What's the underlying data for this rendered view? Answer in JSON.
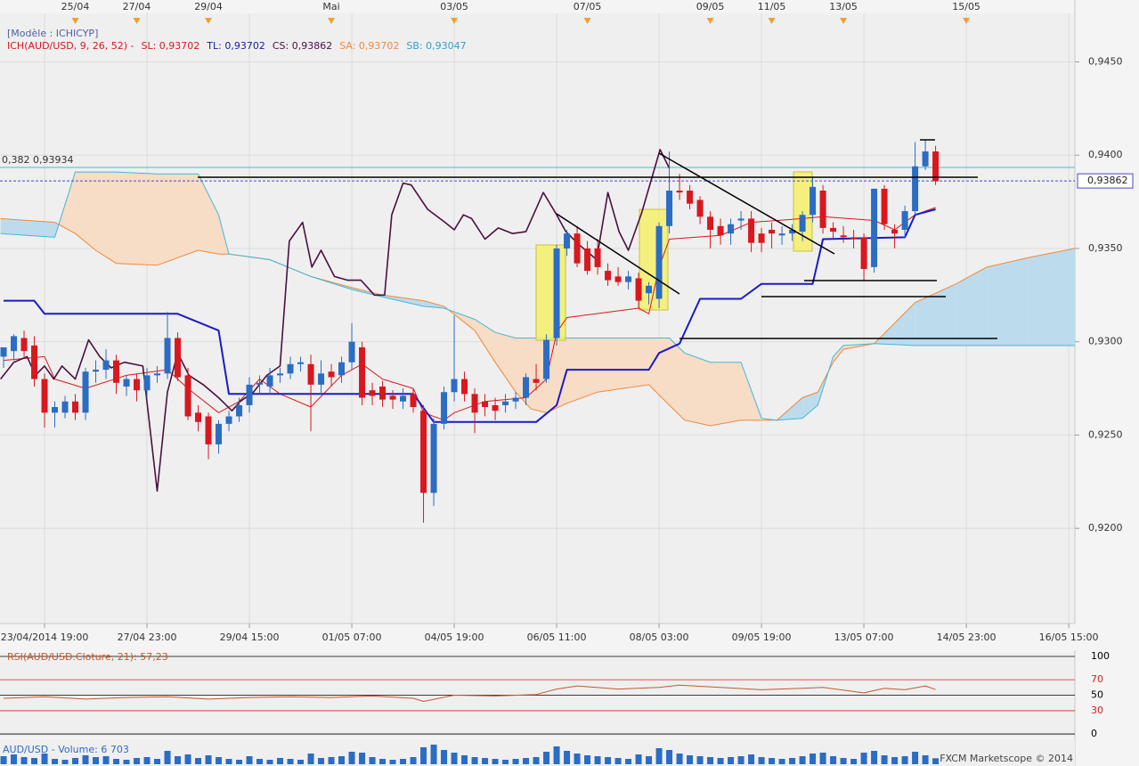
{
  "chart_data": [
    {
      "type": "candlestick",
      "model_label": "[Modèle : ICHICYP]",
      "indicator_labels": [
        {
          "text": "ICH(AUD/USD, 9, 26, 52) -",
          "color": "#d8181e"
        },
        {
          "text": "SL: 0,93702",
          "color": "#d8181e"
        },
        {
          "text": "TL: 0,93702",
          "color": "#1a1ab0"
        },
        {
          "text": "CS: 0,93862",
          "color": "#4a1040"
        },
        {
          "text": "SA: 0,93702",
          "color": "#f0883a"
        },
        {
          "text": "SB: 0,93047",
          "color": "#30a0d0"
        }
      ],
      "top_ticks": [
        {
          "value": 7,
          "label": "25/04"
        },
        {
          "value": 13,
          "label": "27/04"
        },
        {
          "value": 20,
          "label": "29/04"
        },
        {
          "value": 32,
          "label": "Mai"
        },
        {
          "value": 44,
          "label": "03/05"
        },
        {
          "value": 57,
          "label": "07/05"
        },
        {
          "value": 69,
          "label": "09/05"
        },
        {
          "value": 75,
          "label": "11/05"
        },
        {
          "value": 82,
          "label": "13/05"
        },
        {
          "value": 94,
          "label": "15/05"
        }
      ],
      "xticks": [
        {
          "value": 4,
          "label": "23/04/2014 19:00"
        },
        {
          "value": 14,
          "label": "27/04 23:00"
        },
        {
          "value": 24,
          "label": "29/04 15:00"
        },
        {
          "value": 34,
          "label": "01/05 07:00"
        },
        {
          "value": 44,
          "label": "04/05 19:00"
        },
        {
          "value": 54,
          "label": "06/05 11:00"
        },
        {
          "value": 64,
          "label": "08/05 03:00"
        },
        {
          "value": 74,
          "label": "09/05 19:00"
        },
        {
          "value": 84,
          "label": "13/05 07:00"
        },
        {
          "value": 94,
          "label": "14/05 23:00"
        },
        {
          "value": 104,
          "label": "16/05 15:00"
        }
      ],
      "xlim": [
        -0.35,
        104.6
      ],
      "ylim": [
        0.9149,
        0.9476
      ],
      "yticks": [
        {
          "value": 0.92,
          "label": "0,9200"
        },
        {
          "value": 0.925,
          "label": "0,9250"
        },
        {
          "value": 0.93,
          "label": "0,9300"
        },
        {
          "value": 0.935,
          "label": "0,9350"
        },
        {
          "value": 0.94,
          "label": "0,9400"
        },
        {
          "value": 0.945,
          "label": "0,9450"
        }
      ],
      "grid": true,
      "up_color": "#2b6cc4",
      "down_color": "#d8181e",
      "open": [
        0.9292,
        0.9295,
        0.9302,
        0.9298,
        0.928,
        0.9262,
        0.9262,
        0.9268,
        0.9262,
        0.9284,
        0.9285,
        0.929,
        0.9276,
        0.928,
        0.9274,
        0.9282,
        0.9283,
        0.9302,
        0.9282,
        0.9262,
        0.926,
        0.9245,
        0.9256,
        0.926,
        0.9266,
        0.9277,
        0.9276,
        0.9282,
        0.9283,
        0.9288,
        0.9288,
        0.9277,
        0.9284,
        0.9282,
        0.9289,
        0.9297,
        0.9274,
        0.9276,
        0.9271,
        0.9268,
        0.9272,
        0.9263,
        0.9219,
        0.9256,
        0.9273,
        0.928,
        0.9272,
        0.9268,
        0.9266,
        0.9266,
        0.9268,
        0.927,
        0.928,
        0.928,
        0.9302,
        0.935,
        0.9358,
        0.935,
        0.935,
        0.9338,
        0.9335,
        0.9332,
        0.9334,
        0.9326,
        0.9323,
        0.9362,
        0.9381,
        0.9381,
        0.9376,
        0.9367,
        0.9362,
        0.9358,
        0.9365,
        0.9366,
        0.9358,
        0.936,
        0.9357,
        0.9358,
        0.9359,
        0.9368,
        0.9381,
        0.9361,
        0.9357,
        0.9356,
        0.9356,
        0.934,
        0.9382,
        0.936,
        0.936,
        0.937,
        0.9394,
        0.9402
      ],
      "high": [
        0.9297,
        0.9304,
        0.9306,
        0.9303,
        0.9283,
        0.9268,
        0.9271,
        0.9272,
        0.9286,
        0.929,
        0.9296,
        0.9293,
        0.9282,
        0.9283,
        0.9286,
        0.9287,
        0.9316,
        0.9305,
        0.9286,
        0.9266,
        0.9262,
        0.9258,
        0.9263,
        0.927,
        0.9281,
        0.9282,
        0.9286,
        0.9286,
        0.9292,
        0.9292,
        0.9293,
        0.929,
        0.9288,
        0.9292,
        0.931,
        0.93,
        0.9278,
        0.9279,
        0.9274,
        0.9275,
        0.9275,
        0.9266,
        0.9259,
        0.9276,
        0.9314,
        0.9284,
        0.9275,
        0.9272,
        0.927,
        0.9272,
        0.9273,
        0.9283,
        0.9288,
        0.9304,
        0.9352,
        0.936,
        0.9362,
        0.9354,
        0.9355,
        0.9342,
        0.934,
        0.9338,
        0.9337,
        0.9332,
        0.9364,
        0.9402,
        0.939,
        0.9384,
        0.9378,
        0.937,
        0.9366,
        0.9366,
        0.937,
        0.937,
        0.9361,
        0.9364,
        0.9362,
        0.9363,
        0.937,
        0.9388,
        0.9384,
        0.9364,
        0.9362,
        0.936,
        0.9358,
        0.9382,
        0.9384,
        0.9363,
        0.9373,
        0.9407,
        0.9408,
        0.9405
      ],
      "low": [
        0.9286,
        0.929,
        0.9292,
        0.9276,
        0.9254,
        0.9254,
        0.9259,
        0.9258,
        0.9258,
        0.9278,
        0.928,
        0.9272,
        0.9271,
        0.9268,
        0.927,
        0.9278,
        0.928,
        0.9279,
        0.9258,
        0.9252,
        0.9237,
        0.924,
        0.9252,
        0.9257,
        0.9262,
        0.9272,
        0.9272,
        0.9278,
        0.928,
        0.9284,
        0.9252,
        0.9272,
        0.9276,
        0.9278,
        0.9285,
        0.9266,
        0.9266,
        0.9265,
        0.9264,
        0.9264,
        0.9262,
        0.9203,
        0.9212,
        0.9253,
        0.9268,
        0.9268,
        0.9251,
        0.926,
        0.9258,
        0.9262,
        0.9264,
        0.9266,
        0.9274,
        0.9278,
        0.9298,
        0.9346,
        0.934,
        0.9336,
        0.9336,
        0.933,
        0.933,
        0.9328,
        0.9318,
        0.932,
        0.9318,
        0.9358,
        0.9376,
        0.9371,
        0.9363,
        0.935,
        0.9352,
        0.9352,
        0.936,
        0.9348,
        0.9348,
        0.935,
        0.9352,
        0.9354,
        0.9354,
        0.9364,
        0.9358,
        0.9355,
        0.9353,
        0.935,
        0.9333,
        0.9337,
        0.936,
        0.935,
        0.9356,
        0.9368,
        0.9392,
        0.9384
      ],
      "close": [
        0.9297,
        0.9303,
        0.9295,
        0.928,
        0.9262,
        0.9265,
        0.9268,
        0.9262,
        0.9284,
        0.9285,
        0.929,
        0.9278,
        0.928,
        0.9274,
        0.9282,
        0.9283,
        0.9302,
        0.9281,
        0.926,
        0.9257,
        0.9245,
        0.9256,
        0.926,
        0.9266,
        0.9277,
        0.9278,
        0.9282,
        0.9283,
        0.9288,
        0.9289,
        0.9277,
        0.9283,
        0.9281,
        0.9289,
        0.93,
        0.927,
        0.9271,
        0.9269,
        0.9269,
        0.9271,
        0.9265,
        0.9219,
        0.9256,
        0.9273,
        0.928,
        0.9272,
        0.9262,
        0.9265,
        0.9263,
        0.9268,
        0.927,
        0.9281,
        0.9278,
        0.9301,
        0.935,
        0.9358,
        0.9342,
        0.9338,
        0.934,
        0.9333,
        0.9332,
        0.9335,
        0.9322,
        0.933,
        0.9362,
        0.9381,
        0.938,
        0.9374,
        0.9367,
        0.936,
        0.9357,
        0.9363,
        0.9366,
        0.9353,
        0.9353,
        0.9358,
        0.9358,
        0.936,
        0.9368,
        0.9383,
        0.9361,
        0.9359,
        0.9356,
        0.9355,
        0.9339,
        0.9382,
        0.9363,
        0.9358,
        0.937,
        0.9394,
        0.9402,
        0.9386
      ],
      "series": [
        {
          "color": "#d8181e",
          "width": 1,
          "x": [
            0,
            4,
            5,
            8,
            12,
            16,
            18,
            21,
            23,
            25,
            27,
            30,
            33,
            35,
            37,
            40,
            41,
            43,
            44,
            47,
            51,
            53,
            54,
            55,
            62,
            63,
            64,
            65,
            70,
            73,
            78,
            80,
            85,
            87,
            89,
            91
          ],
          "values": [
            0.929,
            0.9292,
            0.928,
            0.9275,
            0.9282,
            0.9285,
            0.9275,
            0.9262,
            0.9268,
            0.928,
            0.9272,
            0.9265,
            0.9282,
            0.9288,
            0.928,
            0.9275,
            0.9262,
            0.9258,
            0.9262,
            0.9268,
            0.927,
            0.928,
            0.9305,
            0.9313,
            0.9318,
            0.9315,
            0.934,
            0.9355,
            0.9357,
            0.9364,
            0.9366,
            0.9367,
            0.9365,
            0.936,
            0.9368,
            0.9372
          ]
        },
        {
          "color": "#1a1ac8",
          "width": 2,
          "x": [
            0,
            3,
            4,
            17,
            21,
            22,
            40,
            42,
            52,
            54,
            55,
            63,
            64,
            66,
            68,
            72,
            74,
            79,
            80,
            88,
            89,
            91
          ],
          "values": [
            0.9322,
            0.9322,
            0.9315,
            0.9315,
            0.9306,
            0.9272,
            0.9272,
            0.9257,
            0.9257,
            0.9266,
            0.9285,
            0.9285,
            0.9294,
            0.9299,
            0.9323,
            0.9323,
            0.9331,
            0.9331,
            0.9355,
            0.9356,
            0.9368,
            0.9371
          ]
        },
        {
          "color": "#4a1040",
          "width": 1.6,
          "x": [
            -0.3,
            1,
            2.3,
            3.1,
            4,
            4.9,
            5.7,
            7,
            8.3,
            9.4,
            10.5,
            11.8,
            13.6,
            15,
            16,
            17,
            18.1,
            19.5,
            21,
            22.3,
            23.1,
            24.4,
            25.7,
            27,
            27.9,
            29.2,
            30.1,
            31,
            32.3,
            33.6,
            34.9,
            36.2,
            37.2,
            37.9,
            39,
            39.8,
            41.4,
            43.1,
            44,
            44.9,
            45.7,
            47,
            48.3,
            49.7,
            51,
            52.7,
            54,
            54.9,
            56.2,
            57.9,
            59,
            60.1,
            61,
            62.3,
            64.1,
            65
          ],
          "values": [
            0.928,
            0.9289,
            0.9292,
            0.9282,
            0.9287,
            0.928,
            0.9287,
            0.928,
            0.9301,
            0.9292,
            0.9286,
            0.9289,
            0.9287,
            0.922,
            0.9273,
            0.9294,
            0.9282,
            0.9277,
            0.927,
            0.9263,
            0.9268,
            0.9273,
            0.9282,
            0.9287,
            0.9354,
            0.9364,
            0.934,
            0.9349,
            0.9335,
            0.9333,
            0.9333,
            0.9325,
            0.9325,
            0.9368,
            0.9385,
            0.9384,
            0.9371,
            0.9364,
            0.936,
            0.9368,
            0.9366,
            0.9355,
            0.9361,
            0.9358,
            0.9359,
            0.938,
            0.9368,
            0.9359,
            0.9352,
            0.9344,
            0.938,
            0.9359,
            0.9349,
            0.9369,
            0.9403,
            0.9393
          ]
        }
      ],
      "cloud": {
        "x": [
          -0.3,
          5,
          7,
          9,
          11,
          15,
          19,
          21,
          22,
          26,
          30,
          34,
          37,
          41,
          43,
          46,
          48,
          50,
          51.5,
          53,
          55,
          58,
          63,
          65,
          66.5,
          69,
          72,
          74,
          75.5,
          78,
          79.5,
          81,
          82,
          85,
          89,
          93,
          96,
          100,
          104.6
        ],
        "span_a": [
          0.9366,
          0.9364,
          0.9358,
          0.9349,
          0.9342,
          0.9341,
          0.9349,
          0.9347,
          0.9347,
          0.9344,
          0.9335,
          0.9329,
          0.9325,
          0.9322,
          0.9319,
          0.9306,
          0.9289,
          0.9273,
          0.9264,
          0.9262,
          0.9267,
          0.9273,
          0.9277,
          0.9266,
          0.9258,
          0.9255,
          0.9258,
          0.9258,
          0.9258,
          0.927,
          0.9273,
          0.9289,
          0.9296,
          0.9299,
          0.9321,
          0.9331,
          0.934,
          0.9345,
          0.935
        ],
        "span_b": [
          0.9358,
          0.9356,
          0.9391,
          0.9391,
          0.9391,
          0.939,
          0.939,
          0.9368,
          0.9347,
          0.9344,
          0.9335,
          0.9328,
          0.9324,
          0.9319,
          0.9318,
          0.9312,
          0.9305,
          0.9302,
          0.9302,
          0.9302,
          0.9302,
          0.9302,
          0.9302,
          0.9302,
          0.9294,
          0.9289,
          0.9289,
          0.9259,
          0.9258,
          0.9259,
          0.9266,
          0.9292,
          0.9298,
          0.9299,
          0.9298,
          0.9298,
          0.9298,
          0.9298,
          0.9298
        ],
        "span_a_color": "#f0883a",
        "span_b_color": "#40b8d8",
        "bull_fill": "#bcdcee",
        "bear_fill": "#f7dcc6"
      },
      "fib_level": {
        "value": 0.93934,
        "label": "0,382 0,93934",
        "color": "#40c0c8"
      },
      "last_price": {
        "value": 0.93862,
        "label": "0,93862",
        "color": "#4848c8"
      }
    },
    {
      "type": "line",
      "title": "RSI(AUD/USD.Cloture, 21): 57,23",
      "color": "#c8582a",
      "x": [
        0,
        4,
        8,
        12,
        16,
        20,
        24,
        28,
        32,
        36,
        40,
        41,
        44,
        48,
        52,
        54,
        56,
        60,
        64,
        66,
        70,
        74,
        78,
        80,
        84,
        86,
        88,
        90,
        91
      ],
      "values": [
        46,
        48,
        45,
        47,
        48,
        45,
        47,
        48,
        47,
        49,
        46,
        42,
        50,
        49,
        51,
        58,
        62,
        58,
        60,
        63,
        60,
        57,
        59,
        60,
        53,
        59,
        57,
        62,
        57.23
      ],
      "ylim": [
        -3.4,
        104.6
      ],
      "yticks": [
        0,
        30,
        50,
        70,
        100
      ],
      "level_colors": [
        "#000000",
        "#d82020",
        "#000000",
        "#d82020",
        "#000000"
      ]
    },
    {
      "type": "bar",
      "title": "AUD/USD - Volume: 6 703",
      "credit": "FXCM Marketscope © 2014",
      "color": "#2b6cc4",
      "ylim": [
        0,
        28000
      ],
      "values": [
        9000,
        11000,
        8000,
        7000,
        12000,
        6000,
        5000,
        7000,
        10000,
        8000,
        9000,
        6000,
        5000,
        7000,
        8000,
        6000,
        15000,
        9000,
        11000,
        7000,
        10000,
        8000,
        6000,
        5000,
        9000,
        6000,
        5000,
        7000,
        6000,
        5000,
        12000,
        7000,
        8000,
        9000,
        14000,
        13000,
        8000,
        6000,
        5000,
        6000,
        8000,
        19000,
        22000,
        16000,
        13000,
        10000,
        8000,
        7000,
        6000,
        5000,
        6000,
        7000,
        8000,
        14000,
        20000,
        15000,
        12000,
        10000,
        9000,
        8000,
        7000,
        6000,
        11000,
        9000,
        18000,
        16000,
        12000,
        10000,
        9000,
        8000,
        7000,
        8000,
        9000,
        11000,
        8000,
        7000,
        6000,
        7000,
        9000,
        12000,
        13000,
        9000,
        7000,
        6000,
        13000,
        15000,
        10000,
        8000,
        9000,
        14000,
        10000,
        6703
      ]
    }
  ]
}
